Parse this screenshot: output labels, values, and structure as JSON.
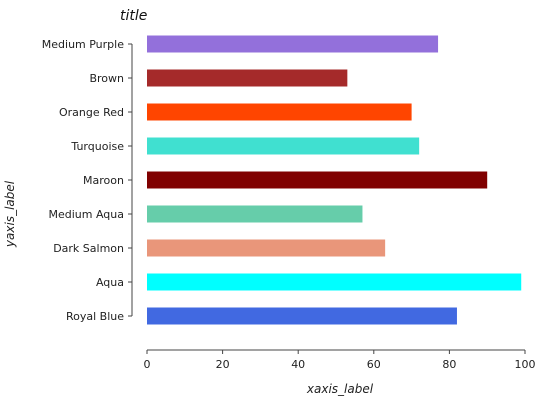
{
  "chart_data": {
    "type": "bar",
    "orientation": "horizontal",
    "title": "title",
    "xlabel": "xaxis_label",
    "ylabel": "yaxis_label",
    "xlim": [
      0,
      100
    ],
    "xticks": [
      0,
      20,
      40,
      60,
      80,
      100
    ],
    "grid": false,
    "categories": [
      "Royal Blue",
      "Aqua",
      "Dark Salmon",
      "Medium Aqua",
      "Maroon",
      "Turquoise",
      "Orange Red",
      "Brown",
      "Medium Purple"
    ],
    "values": [
      82,
      99,
      63,
      57,
      90,
      72,
      70,
      53,
      77
    ],
    "colors": [
      "#4169e1",
      "#00ffff",
      "#e9967a",
      "#66cdaa",
      "#800000",
      "#40e0d0",
      "#ff4500",
      "#a52a2a",
      "#9370db"
    ]
  }
}
